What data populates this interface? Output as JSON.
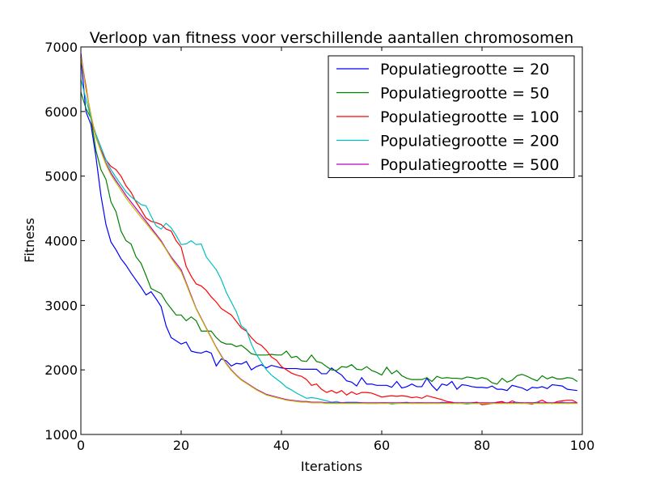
{
  "chart_data": {
    "type": "line",
    "title": "Verloop van fitness voor verschillende aantallen chromosomen",
    "xlabel": "Iterations",
    "ylabel": "Fitness",
    "xlim": [
      0,
      100
    ],
    "ylim": [
      1000,
      7000
    ],
    "xticks": [
      0,
      20,
      40,
      60,
      80,
      100
    ],
    "yticks": [
      1000,
      2000,
      3000,
      4000,
      5000,
      6000,
      7000
    ],
    "grid": false,
    "legend_position": "top-right",
    "series": [
      {
        "name": "Populatiegrootte = 20",
        "color": "#0000ff",
        "values": [
          6850,
          6000,
          5800,
          5300,
          4700,
          4250,
          3980,
          3860,
          3720,
          3620,
          3500,
          3390,
          3280,
          3160,
          3210,
          3100,
          2980,
          2680,
          2500,
          2450,
          2400,
          2430,
          2290,
          2270,
          2260,
          2290,
          2260,
          2060,
          2170,
          2140,
          2060,
          2100,
          2090,
          2130,
          2000,
          2050,
          2080,
          2030,
          2070,
          2050,
          2030,
          2020,
          2020,
          2020,
          2010,
          2010,
          2010,
          2010,
          1940,
          1940,
          2030,
          1970,
          1920,
          1830,
          1810,
          1750,
          1880,
          1780,
          1780,
          1760,
          1760,
          1760,
          1730,
          1820,
          1720,
          1740,
          1780,
          1740,
          1740,
          1870,
          1760,
          1680,
          1780,
          1760,
          1820,
          1700,
          1770,
          1760,
          1740,
          1730,
          1730,
          1720,
          1750,
          1700,
          1700,
          1680,
          1760,
          1740,
          1720,
          1680,
          1730,
          1720,
          1740,
          1710,
          1770,
          1760,
          1750,
          1700,
          1690,
          1680
        ]
      },
      {
        "name": "Populatiegrootte = 50",
        "color": "#008000",
        "values": [
          6300,
          6050,
          5900,
          5400,
          5100,
          4950,
          4600,
          4450,
          4150,
          4000,
          3950,
          3750,
          3650,
          3460,
          3260,
          3220,
          3180,
          3050,
          2950,
          2850,
          2850,
          2760,
          2820,
          2760,
          2600,
          2600,
          2600,
          2500,
          2430,
          2400,
          2400,
          2360,
          2380,
          2320,
          2250,
          2230,
          2230,
          2230,
          2240,
          2230,
          2230,
          2290,
          2190,
          2210,
          2140,
          2130,
          2230,
          2130,
          2110,
          2050,
          2000,
          1990,
          2050,
          2040,
          2080,
          2010,
          2000,
          2050,
          1990,
          1960,
          1920,
          2040,
          1940,
          1990,
          1910,
          1870,
          1850,
          1850,
          1850,
          1880,
          1820,
          1900,
          1870,
          1880,
          1870,
          1870,
          1860,
          1890,
          1880,
          1860,
          1880,
          1860,
          1800,
          1780,
          1870,
          1810,
          1840,
          1910,
          1930,
          1900,
          1860,
          1830,
          1910,
          1860,
          1890,
          1860,
          1860,
          1880,
          1870,
          1820
        ]
      },
      {
        "name": "Populatiegrootte = 100",
        "color": "#ff0000",
        "values": [
          6850,
          6400,
          5900,
          5600,
          5400,
          5250,
          5150,
          5100,
          5000,
          4850,
          4750,
          4600,
          4480,
          4350,
          4300,
          4280,
          4250,
          4180,
          4150,
          4000,
          3900,
          3600,
          3450,
          3330,
          3300,
          3230,
          3130,
          3050,
          2950,
          2900,
          2850,
          2750,
          2650,
          2600,
          2500,
          2420,
          2380,
          2300,
          2200,
          2150,
          2050,
          2000,
          1950,
          1920,
          1900,
          1850,
          1760,
          1780,
          1700,
          1650,
          1680,
          1640,
          1680,
          1610,
          1660,
          1620,
          1650,
          1650,
          1640,
          1610,
          1580,
          1590,
          1600,
          1590,
          1600,
          1590,
          1570,
          1580,
          1560,
          1600,
          1580,
          1560,
          1540,
          1510,
          1500,
          1480,
          1490,
          1480,
          1490,
          1500,
          1460,
          1470,
          1480,
          1500,
          1510,
          1480,
          1520,
          1490,
          1490,
          1480,
          1470,
          1500,
          1530,
          1490,
          1480,
          1510,
          1520,
          1530,
          1530,
          1490
        ]
      },
      {
        "name": "Populatiegrootte = 200",
        "color": "#00bfbf",
        "values": [
          6500,
          6200,
          5900,
          5650,
          5450,
          5250,
          5100,
          4980,
          4870,
          4760,
          4680,
          4620,
          4560,
          4540,
          4380,
          4230,
          4180,
          4270,
          4200,
          4080,
          3940,
          3950,
          4000,
          3940,
          3950,
          3750,
          3650,
          3550,
          3400,
          3200,
          3050,
          2900,
          2680,
          2620,
          2400,
          2240,
          2120,
          2000,
          1920,
          1860,
          1800,
          1730,
          1690,
          1640,
          1600,
          1560,
          1570,
          1560,
          1540,
          1520,
          1500,
          1510,
          1490,
          1500,
          1500,
          1500,
          1490,
          1480,
          1480,
          1480,
          1490,
          1490,
          1470,
          1480,
          1490,
          1500,
          1480,
          1490,
          1490,
          1480,
          1490,
          1480,
          1500,
          1490,
          1480,
          1490,
          1480,
          1470,
          1480,
          1480,
          1490,
          1480,
          1490,
          1480,
          1490,
          1480,
          1490,
          1500,
          1480,
          1490,
          1490,
          1500,
          1480,
          1490,
          1480,
          1490,
          1500,
          1480,
          1490,
          1490
        ]
      },
      {
        "name": "Populatiegrootte = 500",
        "color": "#bf00bf",
        "values": [
          6900,
          6350,
          5950,
          5600,
          5400,
          5200,
          5050,
          4930,
          4820,
          4700,
          4600,
          4500,
          4400,
          4300,
          4200,
          4100,
          4000,
          3870,
          3750,
          3650,
          3550,
          3350,
          3150,
          2950,
          2800,
          2650,
          2500,
          2350,
          2220,
          2100,
          2000,
          1920,
          1850,
          1800,
          1750,
          1700,
          1660,
          1620,
          1600,
          1580,
          1560,
          1540,
          1530,
          1520,
          1510,
          1510,
          1500,
          1500,
          1500,
          1490,
          1490,
          1490,
          1490,
          1490,
          1490,
          1490,
          1490,
          1490,
          1490,
          1490,
          1490,
          1490,
          1490,
          1490,
          1490,
          1490,
          1490,
          1490,
          1490,
          1490,
          1490,
          1490,
          1490,
          1490,
          1490,
          1490,
          1490,
          1490,
          1490,
          1490,
          1490,
          1490,
          1490,
          1490,
          1490,
          1490,
          1490,
          1490,
          1490,
          1490,
          1490,
          1490,
          1490,
          1490,
          1490,
          1490,
          1490,
          1490,
          1490,
          1490
        ]
      },
      {
        "name": "",
        "color": "#bfbf00",
        "values": [
          6850,
          6350,
          5950,
          5600,
          5380,
          5180,
          5020,
          4900,
          4780,
          4660,
          4560,
          4460,
          4360,
          4270,
          4170,
          4080,
          3980,
          3860,
          3730,
          3620,
          3520,
          3330,
          3130,
          2940,
          2790,
          2640,
          2490,
          2340,
          2210,
          2090,
          1990,
          1910,
          1840,
          1790,
          1740,
          1690,
          1650,
          1610,
          1590,
          1570,
          1550,
          1530,
          1520,
          1510,
          1500,
          1500,
          1490,
          1490,
          1490,
          1480,
          1480,
          1480,
          1480,
          1480,
          1480,
          1480,
          1480,
          1480,
          1480,
          1480,
          1480,
          1480,
          1480,
          1480,
          1480,
          1480,
          1480,
          1480,
          1480,
          1480,
          1480,
          1480,
          1480,
          1480,
          1480,
          1480,
          1480,
          1480,
          1480,
          1480,
          1480,
          1480,
          1480,
          1480,
          1480,
          1480,
          1480,
          1480,
          1480,
          1480,
          1480,
          1480,
          1480,
          1480,
          1480,
          1480,
          1480,
          1480,
          1480,
          1480
        ]
      }
    ]
  }
}
